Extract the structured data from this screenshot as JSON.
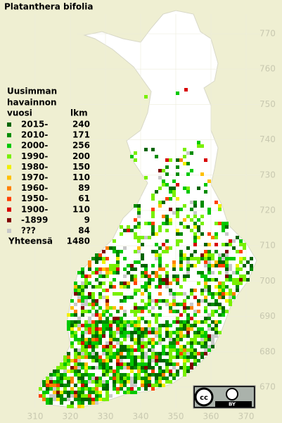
{
  "title": "Platanthera bifolia",
  "legend": {
    "title_lines": [
      "Uusimman",
      "havainnon"
    ],
    "column_period": "vuosi",
    "column_count": "lkm",
    "entries": [
      {
        "label": "2015-",
        "count": 240,
        "color": "#006400"
      },
      {
        "label": "2010-",
        "count": 171,
        "color": "#008c00"
      },
      {
        "label": "2000-",
        "count": 256,
        "color": "#00c800"
      },
      {
        "label": "1990-",
        "count": 200,
        "color": "#78f000"
      },
      {
        "label": "1980-",
        "count": 150,
        "color": "#f0f000"
      },
      {
        "label": "1970-",
        "count": 110,
        "color": "#ffc000"
      },
      {
        "label": "1960-",
        "count": 89,
        "color": "#ff8000"
      },
      {
        "label": "1950-",
        "count": 61,
        "color": "#ff4000"
      },
      {
        "label": "1900-",
        "count": 110,
        "color": "#d80000"
      },
      {
        "label": "-1899",
        "count": 9,
        "color": "#800000"
      },
      {
        "label": "???",
        "count": 84,
        "color": "#c8c8c8"
      }
    ],
    "total_label": "Yhteensä",
    "total": 1480
  },
  "y_ticks": [
    770,
    760,
    750,
    740,
    730,
    720,
    710,
    700,
    690,
    680,
    670
  ],
  "x_ticks": [
    310,
    320,
    330,
    340,
    350,
    360,
    370
  ],
  "license": {
    "icon": "cc",
    "label": "BY"
  }
}
